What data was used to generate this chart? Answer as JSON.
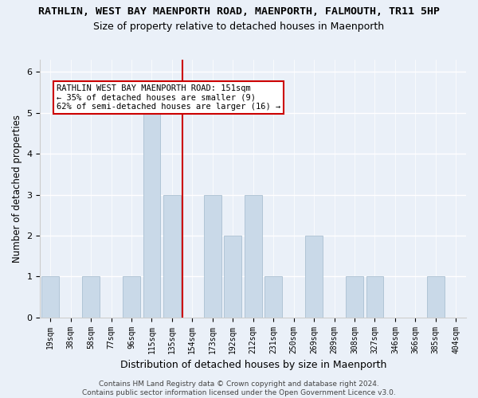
{
  "title": "RATHLIN, WEST BAY MAENPORTH ROAD, MAENPORTH, FALMOUTH, TR11 5HP",
  "subtitle": "Size of property relative to detached houses in Maenporth",
  "xlabel": "Distribution of detached houses by size in Maenporth",
  "ylabel": "Number of detached properties",
  "categories": [
    "19sqm",
    "38sqm",
    "58sqm",
    "77sqm",
    "96sqm",
    "115sqm",
    "135sqm",
    "154sqm",
    "173sqm",
    "192sqm",
    "212sqm",
    "231sqm",
    "250sqm",
    "269sqm",
    "289sqm",
    "308sqm",
    "327sqm",
    "346sqm",
    "366sqm",
    "385sqm",
    "404sqm"
  ],
  "values": [
    1,
    0,
    1,
    0,
    1,
    5,
    3,
    0,
    3,
    2,
    3,
    1,
    0,
    2,
    0,
    1,
    1,
    0,
    0,
    1,
    0
  ],
  "bar_color": "#c9d9e8",
  "bar_edgecolor": "#a0b8cc",
  "vline_x_index": 6.5,
  "vline_color": "#cc0000",
  "annotation_box_edgecolor": "#cc0000",
  "annotation_text": "RATHLIN WEST BAY MAENPORTH ROAD: 151sqm\n← 35% of detached houses are smaller (9)\n62% of semi-detached houses are larger (16) →",
  "ylim": [
    0,
    6.3
  ],
  "yticks": [
    0,
    1,
    2,
    3,
    4,
    5,
    6
  ],
  "footer": "Contains HM Land Registry data © Crown copyright and database right 2024.\nContains public sector information licensed under the Open Government Licence v3.0.",
  "bg_color": "#eaf0f8",
  "plot_bg_color": "#eaf0f8",
  "grid_color": "#ffffff",
  "title_fontsize": 9.5,
  "subtitle_fontsize": 9,
  "xlabel_fontsize": 9,
  "ylabel_fontsize": 8.5,
  "tick_fontsize": 7,
  "footer_fontsize": 6.5,
  "annotation_fontsize": 7.5
}
